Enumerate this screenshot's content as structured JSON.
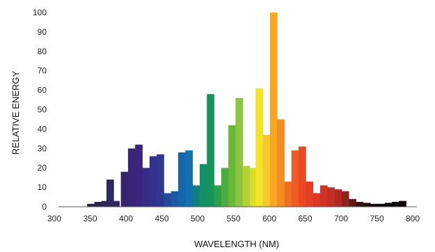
{
  "chart_data": {
    "type": "bar",
    "title": "",
    "xlabel": "WAVELENGTH (NM)",
    "ylabel": "RELATIVE ENERGY",
    "xlim": [
      300,
      800
    ],
    "ylim": [
      0,
      100
    ],
    "x_ticks": [
      300,
      350,
      400,
      450,
      500,
      550,
      600,
      650,
      700,
      750,
      800
    ],
    "y_ticks": [
      0,
      10,
      20,
      30,
      40,
      50,
      60,
      70,
      80,
      90,
      100
    ],
    "grid": false,
    "legend": "none",
    "bin_width_nm": 10,
    "bars": [
      {
        "x": 345,
        "value": 1.5,
        "color": "#2a2246"
      },
      {
        "x": 355,
        "value": 2.5,
        "color": "#2c2450"
      },
      {
        "x": 365,
        "value": 3,
        "color": "#2e2658"
      },
      {
        "x": 372,
        "value": 14,
        "color": "#2f2760"
      },
      {
        "x": 380,
        "value": 3,
        "color": "#30285f"
      },
      {
        "x": 392,
        "value": 18,
        "color": "#35246e"
      },
      {
        "x": 402,
        "value": 30,
        "color": "#3a2478"
      },
      {
        "x": 412,
        "value": 32,
        "color": "#3c257e"
      },
      {
        "x": 422,
        "value": 20,
        "color": "#382a88"
      },
      {
        "x": 432,
        "value": 26,
        "color": "#33308e"
      },
      {
        "x": 442,
        "value": 27,
        "color": "#2e3893"
      },
      {
        "x": 452,
        "value": 7,
        "color": "#244a9c"
      },
      {
        "x": 462,
        "value": 8,
        "color": "#1d5aa5"
      },
      {
        "x": 472,
        "value": 28,
        "color": "#1666ac"
      },
      {
        "x": 482,
        "value": 29,
        "color": "#136fb0"
      },
      {
        "x": 492,
        "value": 11,
        "color": "#10807f"
      },
      {
        "x": 502,
        "value": 22,
        "color": "#129066"
      },
      {
        "x": 512,
        "value": 58,
        "color": "#16955a"
      },
      {
        "x": 522,
        "value": 11,
        "color": "#2aa04c"
      },
      {
        "x": 532,
        "value": 20,
        "color": "#4aad3e"
      },
      {
        "x": 542,
        "value": 42,
        "color": "#6ab83a"
      },
      {
        "x": 552,
        "value": 56,
        "color": "#8cc63e"
      },
      {
        "x": 562,
        "value": 21,
        "color": "#b4d233"
      },
      {
        "x": 572,
        "value": 20,
        "color": "#d8df2a"
      },
      {
        "x": 580,
        "value": 61,
        "color": "#f3e42a"
      },
      {
        "x": 590,
        "value": 37,
        "color": "#f8c92c"
      },
      {
        "x": 600,
        "value": 100,
        "color": "#f7a722"
      },
      {
        "x": 610,
        "value": 45,
        "color": "#f48c22"
      },
      {
        "x": 620,
        "value": 13,
        "color": "#f07023"
      },
      {
        "x": 630,
        "value": 29,
        "color": "#ee5b24"
      },
      {
        "x": 640,
        "value": 31,
        "color": "#e94a24"
      },
      {
        "x": 650,
        "value": 13,
        "color": "#e43e26"
      },
      {
        "x": 660,
        "value": 7,
        "color": "#dd3726"
      },
      {
        "x": 670,
        "value": 11,
        "color": "#d03325"
      },
      {
        "x": 680,
        "value": 10,
        "color": "#c32f24"
      },
      {
        "x": 690,
        "value": 9,
        "color": "#b02a21"
      },
      {
        "x": 700,
        "value": 8,
        "color": "#8e231c"
      },
      {
        "x": 710,
        "value": 4,
        "color": "#641a16"
      },
      {
        "x": 720,
        "value": 2.5,
        "color": "#3a1210"
      },
      {
        "x": 730,
        "value": 2,
        "color": "#1e0a09"
      },
      {
        "x": 740,
        "value": 1.5,
        "color": "#120707"
      },
      {
        "x": 750,
        "value": 1.5,
        "color": "#0e0606"
      },
      {
        "x": 760,
        "value": 2,
        "color": "#0d0505"
      },
      {
        "x": 770,
        "value": 2.5,
        "color": "#0c0505"
      },
      {
        "x": 780,
        "value": 3,
        "color": "#0b0404"
      }
    ]
  }
}
